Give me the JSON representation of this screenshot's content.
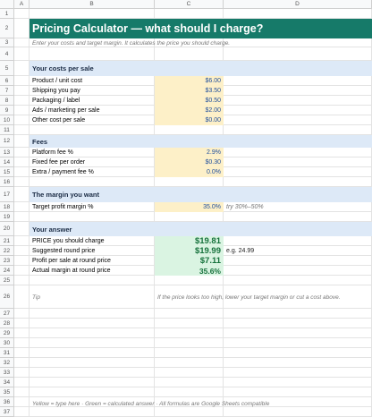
{
  "columns": [
    "A",
    "B",
    "C",
    "D"
  ],
  "rows": [
    {
      "n": 1
    },
    {
      "n": 2,
      "b": "Pricing Calculator — what should I charge?"
    },
    {
      "n": 3,
      "b": "Enter your costs and target margin. It calculates the price you should charge."
    },
    {
      "n": 4
    },
    {
      "n": 5,
      "b": "Your costs per sale"
    },
    {
      "n": 6,
      "b": "Product / unit cost",
      "c": "$6.00"
    },
    {
      "n": 7,
      "b": "Shipping you pay",
      "c": "$3.50"
    },
    {
      "n": 8,
      "b": "Packaging / label",
      "c": "$0.50"
    },
    {
      "n": 9,
      "b": "Ads / marketing per sale",
      "c": "$2.00"
    },
    {
      "n": 10,
      "b": "Other cost per sale",
      "c": "$0.00"
    },
    {
      "n": 11
    },
    {
      "n": 12,
      "b": "Fees"
    },
    {
      "n": 13,
      "b": "Platform fee %",
      "c": "2.9%"
    },
    {
      "n": 14,
      "b": "Fixed fee per order",
      "c": "$0.30"
    },
    {
      "n": 15,
      "b": "Extra / payment fee %",
      "c": "0.0%"
    },
    {
      "n": 16
    },
    {
      "n": 17,
      "b": "The margin you want"
    },
    {
      "n": 18,
      "b": "Target profit margin %",
      "c": "35.0%",
      "d": "try 30%–50%"
    },
    {
      "n": 19
    },
    {
      "n": 20,
      "b": "Your answer"
    },
    {
      "n": 21,
      "b": "PRICE you should charge",
      "c": "$19.81"
    },
    {
      "n": 22,
      "b": "Suggested round price",
      "c": "$19.99",
      "d": "e.g. 24.99"
    },
    {
      "n": 23,
      "b": "Profit per sale at round price",
      "c": "$7.11"
    },
    {
      "n": 24,
      "b": "Actual margin at round price",
      "c": "35.6%"
    },
    {
      "n": 25
    },
    {
      "n": 26,
      "b": "Tip",
      "c": "If the price looks too high, lower your target margin or cut a cost above."
    },
    {
      "n": 27
    },
    {
      "n": 28
    },
    {
      "n": 29
    },
    {
      "n": 30
    },
    {
      "n": 31
    },
    {
      "n": 32
    },
    {
      "n": 33
    },
    {
      "n": 34
    },
    {
      "n": 35
    },
    {
      "n": 36,
      "b": "Yellow = type here · Green = calculated answer · All formulas are Google Sheets compatible"
    },
    {
      "n": 37
    }
  ]
}
